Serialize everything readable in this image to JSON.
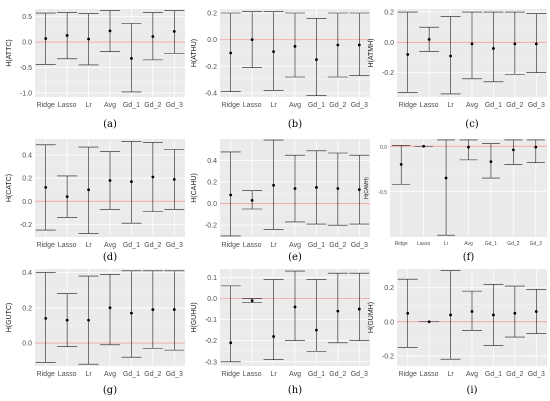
{
  "colors": {
    "panel_bg": "#ebebeb",
    "grid_major": "#ffffff",
    "grid_minor": "#f5f5f5",
    "zero_line": "#f4a3a3",
    "errorbar": "#1a1a1a",
    "point": "#000000",
    "axis_text": "#4d4d4d"
  },
  "chart_data": [
    {
      "type": "errorbar",
      "caption": "(a)",
      "ylabel": "H(ATTC)",
      "categories": [
        "Ridge",
        "Lasso",
        "Lr",
        "Avg",
        "Gd_1",
        "Gd_2",
        "Gd_3"
      ],
      "yticks": [
        "-1.0",
        "-0.5",
        "0.0",
        "0.5"
      ],
      "ytick_values": [
        -1.0,
        -0.5,
        0.0,
        0.5
      ],
      "ylim": [
        -1.08,
        0.65
      ],
      "grid": true,
      "zero_line": true,
      "center": [
        0.07,
        0.13,
        0.06,
        0.22,
        -0.32,
        0.11,
        0.21
      ],
      "lower": [
        -0.44,
        -0.33,
        -0.45,
        -0.19,
        -0.98,
        -0.35,
        -0.22
      ],
      "upper": [
        0.57,
        0.58,
        0.56,
        0.62,
        0.37,
        0.58,
        0.62
      ]
    },
    {
      "type": "errorbar",
      "caption": "(b)",
      "ylabel": "H(ATHU)",
      "categories": [
        "Ridge",
        "Lasso",
        "Lr",
        "Avg",
        "Gd_1",
        "Gd_2",
        "Gd_3"
      ],
      "yticks": [
        "-0.4",
        "-0.2",
        "0.0",
        "0.2"
      ],
      "ytick_values": [
        -0.4,
        -0.2,
        0.0,
        0.2
      ],
      "ylim": [
        -0.43,
        0.23
      ],
      "grid": true,
      "zero_line": true,
      "center": [
        -0.1,
        0.0,
        -0.09,
        -0.05,
        -0.15,
        -0.04,
        -0.04
      ],
      "lower": [
        -0.39,
        -0.21,
        -0.38,
        -0.28,
        -0.42,
        -0.28,
        -0.27
      ],
      "upper": [
        0.2,
        0.21,
        0.21,
        0.2,
        0.16,
        0.2,
        0.2
      ]
    },
    {
      "type": "errorbar",
      "caption": "(c)",
      "ylabel": "H(ATMH)",
      "categories": [
        "Ridge",
        "Lasso",
        "Lr",
        "Avg",
        "Gd_1",
        "Gd_2",
        "Gd_3"
      ],
      "yticks": [
        "-0.2",
        "0.0",
        "0.2"
      ],
      "ytick_values": [
        -0.2,
        0.0,
        0.2
      ],
      "ylim": [
        -0.36,
        0.22
      ],
      "grid": true,
      "zero_line": true,
      "center": [
        -0.08,
        0.02,
        -0.09,
        -0.01,
        -0.04,
        -0.01,
        -0.01
      ],
      "lower": [
        -0.33,
        -0.06,
        -0.34,
        -0.24,
        -0.26,
        -0.21,
        -0.2
      ],
      "upper": [
        0.2,
        0.1,
        0.17,
        0.2,
        0.2,
        0.2,
        0.19
      ]
    },
    {
      "type": "errorbar",
      "caption": "(d)",
      "ylabel": "H(CATC)",
      "categories": [
        "Ridge",
        "Lasso",
        "Lr",
        "Avg",
        "Gd_1",
        "Gd_2",
        "Gd_3"
      ],
      "yticks": [
        "-0.2",
        "0.0",
        "0.2",
        "0.4"
      ],
      "ytick_values": [
        -0.2,
        0.0,
        0.2,
        0.4
      ],
      "ylim": [
        -0.31,
        0.54
      ],
      "grid": true,
      "zero_line": true,
      "center": [
        0.12,
        0.04,
        0.1,
        0.18,
        0.17,
        0.21,
        0.19
      ],
      "lower": [
        -0.25,
        -0.14,
        -0.28,
        -0.07,
        -0.19,
        -0.09,
        -0.07
      ],
      "upper": [
        0.49,
        0.22,
        0.47,
        0.43,
        0.52,
        0.51,
        0.45
      ]
    },
    {
      "type": "errorbar",
      "caption": "(e)",
      "ylabel": "H(CAHU)",
      "categories": [
        "Ridge",
        "Lasso",
        "Lr",
        "Avg",
        "Gd_1",
        "Gd_2",
        "Gd_3"
      ],
      "yticks": [
        "-0.2",
        "0.0",
        "0.2",
        "0.4"
      ],
      "ytick_values": [
        -0.2,
        0.0,
        0.2,
        0.4
      ],
      "ylim": [
        -0.31,
        0.6
      ],
      "grid": true,
      "zero_line": true,
      "center": [
        0.08,
        0.03,
        0.17,
        0.14,
        0.15,
        0.14,
        0.13
      ],
      "lower": [
        -0.3,
        -0.05,
        -0.24,
        -0.17,
        -0.19,
        -0.2,
        -0.19
      ],
      "upper": [
        0.48,
        0.12,
        0.59,
        0.45,
        0.49,
        0.47,
        0.45
      ]
    },
    {
      "type": "errorbar",
      "caption": "(f)",
      "ylabel": "H(CAMH)",
      "categories": [
        "Ridge",
        "Lasso",
        "Lr",
        "Avg",
        "Gd_1",
        "Gd_2",
        "Gd_3"
      ],
      "yticks": [
        "-0.5",
        "0.0"
      ],
      "ytick_values": [
        -0.5,
        0.0
      ],
      "ylim": [
        -1.0,
        0.08
      ],
      "grid": true,
      "zero_line": true,
      "center": [
        -0.2,
        0.0,
        -0.35,
        -0.01,
        -0.17,
        -0.04,
        -0.01
      ],
      "lower": [
        -0.42,
        0.0,
        -0.98,
        -0.15,
        -0.35,
        -0.2,
        -0.18
      ],
      "upper": [
        0.01,
        0.0,
        0.07,
        0.07,
        0.03,
        0.07,
        0.07
      ]
    },
    {
      "type": "errorbar",
      "caption": "(g)",
      "ylabel": "H(GUTC)",
      "categories": [
        "Ridge",
        "Lasso",
        "Lr",
        "Avg",
        "Gd_1",
        "Gd_2",
        "Gd_3"
      ],
      "yticks": [
        "0.0",
        "0.2",
        "0.4"
      ],
      "ytick_values": [
        0.0,
        0.2,
        0.4
      ],
      "ylim": [
        -0.13,
        0.42
      ],
      "grid": true,
      "zero_line": true,
      "center": [
        0.14,
        0.13,
        0.13,
        0.2,
        0.17,
        0.19,
        0.19
      ],
      "lower": [
        -0.11,
        -0.02,
        -0.12,
        -0.01,
        -0.08,
        -0.03,
        -0.04
      ],
      "upper": [
        0.4,
        0.28,
        0.38,
        0.39,
        0.41,
        0.41,
        0.41
      ]
    },
    {
      "type": "errorbar",
      "caption": "(h)",
      "ylabel": "H(GUHU)",
      "categories": [
        "Ridge",
        "Lasso",
        "Lr",
        "Avg",
        "Gd_1",
        "Gd_2",
        "Gd_3"
      ],
      "yticks": [
        "-0.3",
        "-0.2",
        "-0.1",
        "0.0",
        "0.1"
      ],
      "ytick_values": [
        -0.3,
        -0.2,
        -0.1,
        0.0,
        0.1
      ],
      "ylim": [
        -0.32,
        0.14
      ],
      "grid": true,
      "zero_line": true,
      "center": [
        -0.21,
        -0.01,
        -0.18,
        -0.04,
        -0.15,
        -0.06,
        -0.05
      ],
      "lower": [
        -0.3,
        -0.02,
        -0.29,
        -0.2,
        -0.25,
        -0.21,
        -0.2
      ],
      "upper": [
        0.06,
        0.0,
        0.09,
        0.13,
        0.09,
        0.12,
        0.12
      ]
    },
    {
      "type": "errorbar",
      "caption": "(i)",
      "ylabel": "H(GUMH)",
      "categories": [
        "Ridge",
        "Lasso",
        "Lr",
        "Avg",
        "Gd_1",
        "Gd_2",
        "Gd_3"
      ],
      "yticks": [
        "-0.2",
        "0.0",
        "0.2"
      ],
      "ytick_values": [
        -0.2,
        0.0,
        0.2
      ],
      "ylim": [
        -0.26,
        0.31
      ],
      "grid": true,
      "zero_line": true,
      "center": [
        0.05,
        0.0,
        0.04,
        0.06,
        0.04,
        0.05,
        0.06
      ],
      "lower": [
        -0.15,
        0.0,
        -0.22,
        -0.05,
        -0.14,
        -0.09,
        -0.07
      ],
      "upper": [
        0.25,
        0.0,
        0.3,
        0.18,
        0.22,
        0.21,
        0.19
      ]
    }
  ]
}
